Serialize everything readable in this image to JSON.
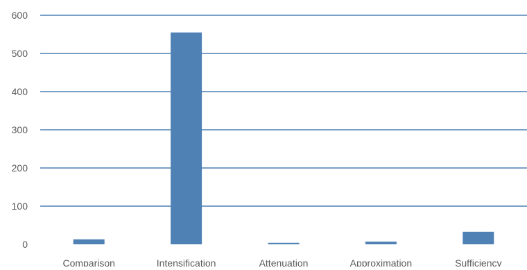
{
  "chart_data": {
    "type": "bar",
    "title": "",
    "xlabel": "",
    "ylabel": "",
    "categories": [
      "Comparison",
      "Intensification",
      "Attenuation",
      "Approximation",
      "Sufficiency"
    ],
    "values": [
      13,
      555,
      4,
      7,
      33
    ],
    "ylim": [
      0,
      600
    ],
    "yticks": [
      "0",
      "100",
      "200",
      "300",
      "400",
      "500",
      "600"
    ],
    "grid": true,
    "legend": "none",
    "colors": {
      "bar": "#4f81b5",
      "gridline": "#4f81b5",
      "tick_text": "#595959"
    }
  }
}
